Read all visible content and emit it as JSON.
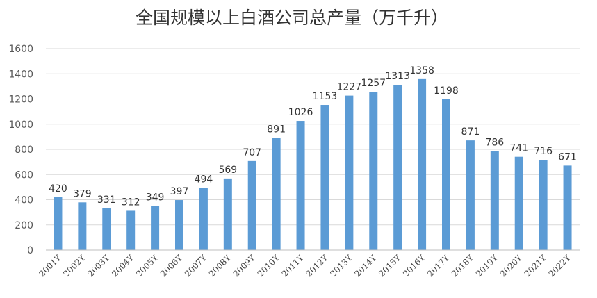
{
  "chart_data": {
    "type": "bar",
    "title": "全国规模以上白酒公司总产量（万千升）",
    "xlabel": "",
    "ylabel": "",
    "ylim": [
      0,
      1600
    ],
    "yticks": [
      0,
      200,
      400,
      600,
      800,
      1000,
      1200,
      1400,
      1600
    ],
    "grid": true,
    "legend": "none",
    "categories": [
      "2001Y",
      "2002Y",
      "2003Y",
      "2004Y",
      "2005Y",
      "2006Y",
      "2007Y",
      "2008Y",
      "2009Y",
      "2010Y",
      "2011Y",
      "2012Y",
      "2013Y",
      "2014Y",
      "2015Y",
      "2016Y",
      "2017Y",
      "2018Y",
      "2019Y",
      "2020Y",
      "2021Y",
      "2022Y"
    ],
    "values": [
      420,
      379,
      331,
      312,
      349,
      397,
      494,
      569,
      707,
      891,
      1026,
      1153,
      1227,
      1257,
      1313,
      1358,
      1198,
      871,
      786,
      741,
      716,
      671
    ],
    "bar_color": "#5B9BD5"
  }
}
